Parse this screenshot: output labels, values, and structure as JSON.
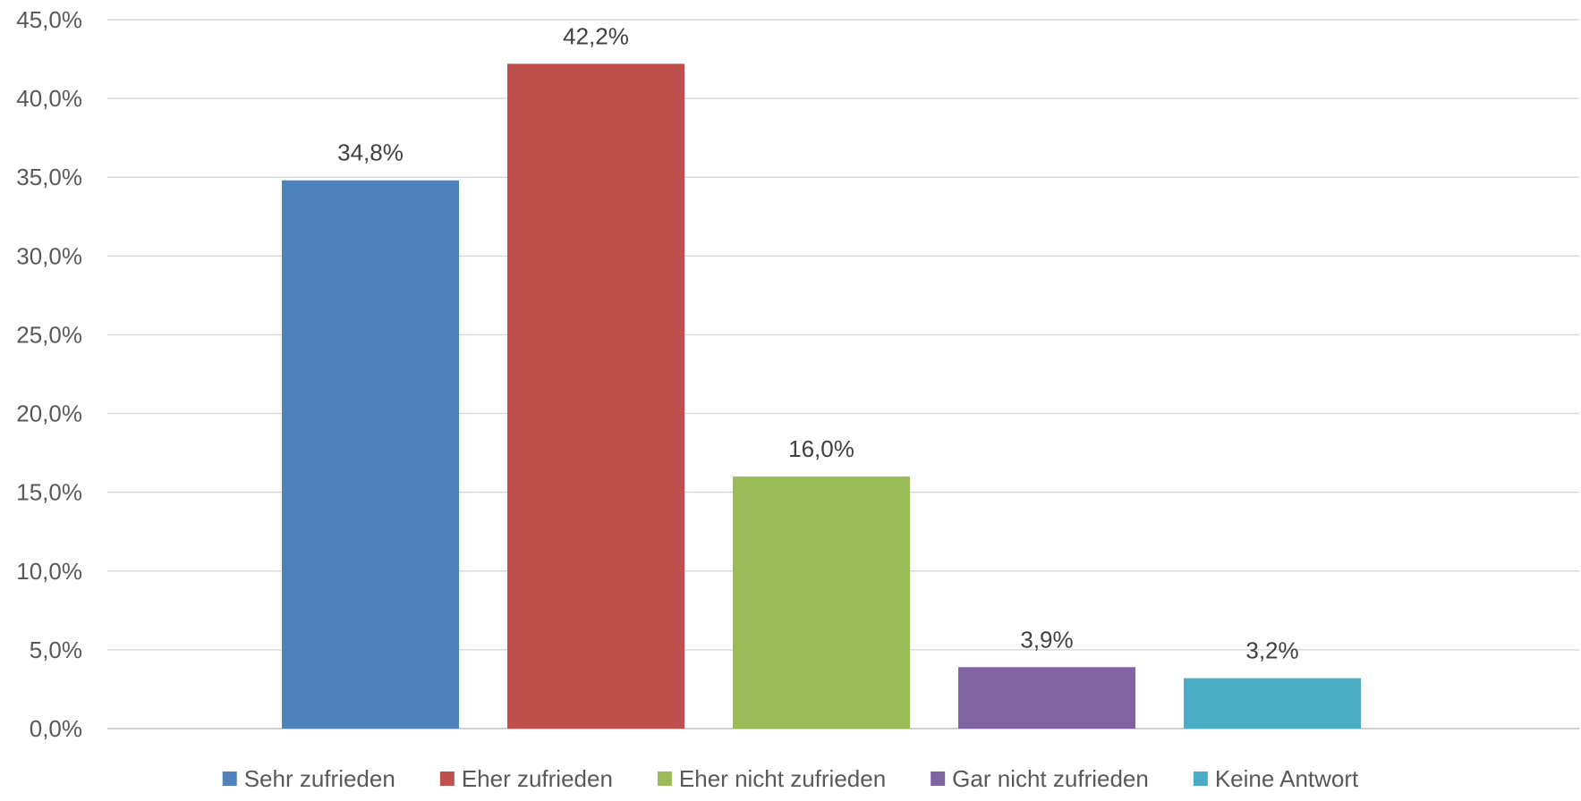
{
  "chart_data": {
    "type": "bar",
    "categories": [
      "Sehr zufrieden",
      "Eher zufrieden",
      "Eher nicht zufrieden",
      "Gar nicht zufrieden",
      "Keine Antwort"
    ],
    "values": [
      34.8,
      42.2,
      16.0,
      3.9,
      3.2
    ],
    "data_labels": [
      "34,8%",
      "42,2%",
      "16,0%",
      "3,9%",
      "3,2%"
    ],
    "colors": [
      "#4f81bd",
      "#c0504d",
      "#9bbb59",
      "#8064a2",
      "#4bacc6"
    ],
    "title": "",
    "xlabel": "",
    "ylabel": "",
    "ylim": [
      0,
      45
    ],
    "yticks": [
      0,
      5,
      10,
      15,
      20,
      25,
      30,
      35,
      40,
      45
    ],
    "ytick_labels": [
      "0,0%",
      "5,0%",
      "10,0%",
      "15,0%",
      "20,0%",
      "25,0%",
      "30,0%",
      "35,0%",
      "40,0%",
      "45,0%"
    ],
    "grid": true,
    "legend": {
      "placement": "bottom",
      "entries": [
        "Sehr zufrieden",
        "Eher zufrieden",
        "Eher nicht zufrieden",
        "Gar nicht zufrieden",
        "Keine Antwort"
      ]
    }
  }
}
